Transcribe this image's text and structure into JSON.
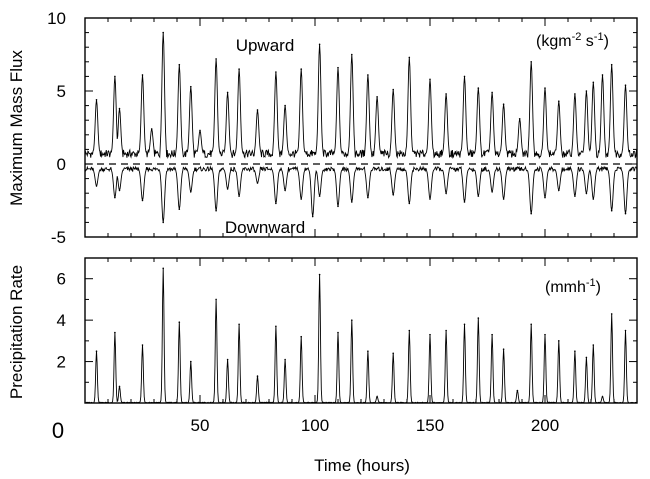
{
  "chart_data": [
    {
      "type": "line",
      "ylabel": "Maximum Mass Flux",
      "units_label": "(kgm-2 s-1)",
      "annotations": [
        "Upward",
        "Downward"
      ],
      "xlim": [
        0,
        240
      ],
      "ylim": [
        -5,
        10
      ],
      "yticks": [
        "10",
        "5",
        "0",
        "-5"
      ],
      "zero_reference_line": "dashed",
      "series": [
        {
          "name": "Upward",
          "x": [
            5,
            13,
            15,
            25,
            29,
            34,
            41,
            46,
            50,
            57,
            62,
            67,
            75,
            83,
            87,
            94,
            102,
            110,
            116,
            123,
            127,
            134,
            141,
            150,
            157,
            165,
            171,
            177,
            182,
            189,
            194,
            200,
            206,
            213,
            218,
            221,
            225,
            229,
            235
          ],
          "peaks": [
            4.4,
            6.0,
            3.8,
            6.1,
            2.4,
            9.0,
            6.8,
            5.3,
            2.3,
            7.2,
            4.9,
            6.5,
            3.7,
            6.3,
            4.0,
            6.5,
            8.2,
            6.6,
            7.5,
            6.1,
            4.6,
            5.1,
            7.3,
            5.8,
            4.8,
            6.0,
            5.2,
            4.9,
            4.1,
            3.1,
            7.0,
            5.2,
            4.3,
            4.8,
            5.0,
            5.6,
            6.1,
            6.8,
            5.4
          ]
        },
        {
          "name": "Downward",
          "x": [
            5,
            13,
            15,
            25,
            34,
            41,
            46,
            57,
            62,
            67,
            75,
            83,
            87,
            94,
            99,
            102,
            110,
            116,
            123,
            134,
            141,
            150,
            157,
            165,
            171,
            177,
            182,
            194,
            200,
            206,
            213,
            218,
            221,
            229,
            235
          ],
          "peaks": [
            -1.5,
            -2.3,
            -1.8,
            -2.5,
            -4.0,
            -3.1,
            -1.9,
            -3.2,
            -1.7,
            -2.2,
            -1.3,
            -2.7,
            -1.8,
            -2.4,
            -3.6,
            -2.2,
            -2.9,
            -2.6,
            -2.3,
            -2.1,
            -2.7,
            -2.4,
            -2.0,
            -2.6,
            -2.2,
            -1.9,
            -2.4,
            -3.4,
            -2.3,
            -1.8,
            -2.2,
            -2.0,
            -2.4,
            -3.2,
            -3.4
          ]
        }
      ]
    },
    {
      "type": "line",
      "ylabel": "Precipitation Rate",
      "units_label": "(mmh-1)",
      "xlabel": "Time (hours)",
      "xlim": [
        0,
        240
      ],
      "ylim": [
        0,
        7
      ],
      "yticks": [
        "6",
        "4",
        "2"
      ],
      "xticks": [
        "0",
        "50",
        "100",
        "150",
        "200"
      ],
      "series": [
        {
          "name": "Precipitation Rate",
          "x": [
            5,
            13,
            15,
            25,
            34,
            41,
            46,
            57,
            62,
            67,
            75,
            83,
            87,
            94,
            102,
            110,
            116,
            123,
            127,
            134,
            141,
            150,
            157,
            165,
            171,
            177,
            182,
            188,
            194,
            200,
            206,
            213,
            218,
            221,
            225,
            229,
            235
          ],
          "peaks": [
            2.5,
            3.4,
            0.8,
            2.8,
            6.5,
            3.9,
            2.0,
            5.0,
            2.1,
            3.8,
            1.3,
            3.7,
            2.1,
            3.2,
            6.2,
            3.4,
            4.0,
            2.5,
            0.3,
            2.4,
            3.5,
            3.3,
            3.5,
            3.8,
            4.1,
            3.3,
            2.6,
            0.6,
            3.8,
            3.3,
            3.0,
            2.5,
            2.2,
            2.8,
            0.3,
            4.3,
            3.5
          ]
        }
      ]
    }
  ]
}
